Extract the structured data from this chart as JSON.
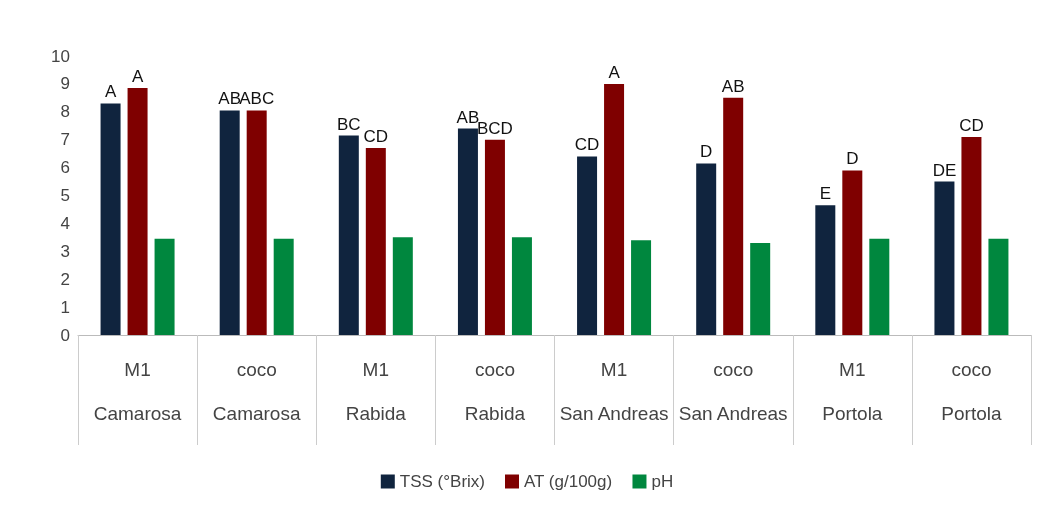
{
  "chart_data": {
    "type": "bar",
    "categories": [
      "M1\nCamarosa",
      "coco\nCamarosa",
      "M1\nRabida",
      "coco\nRabida",
      "M1\nSan Andreas",
      "coco\nSan Andreas",
      "M1\nPortola",
      "coco\nPortola"
    ],
    "series": [
      {
        "name": "TSS (°Brix)",
        "color": "#10243e",
        "values": [
          8.3,
          8.05,
          7.15,
          7.4,
          6.4,
          6.15,
          4.65,
          5.5
        ],
        "value_labels": [
          "A",
          "AB",
          "BC",
          "AB",
          "CD",
          "D",
          "E",
          "DE"
        ]
      },
      {
        "name": "AT (g/100g)",
        "color": "#7f0000",
        "values": [
          8.85,
          8.05,
          6.7,
          7.0,
          9.0,
          8.5,
          5.9,
          7.1
        ],
        "value_labels": [
          "A",
          "ABC",
          "CD",
          "BCD",
          "A",
          "AB",
          "D",
          "CD"
        ]
      },
      {
        "name": "pH",
        "color": "#00873e",
        "values": [
          3.45,
          3.45,
          3.5,
          3.5,
          3.4,
          3.3,
          3.45,
          3.45
        ]
      }
    ],
    "ylim": [
      0,
      10
    ],
    "yticks": [
      0,
      1,
      2,
      3,
      4,
      5,
      6,
      7,
      8,
      9,
      10
    ],
    "grid": false,
    "legend": "bottom"
  }
}
